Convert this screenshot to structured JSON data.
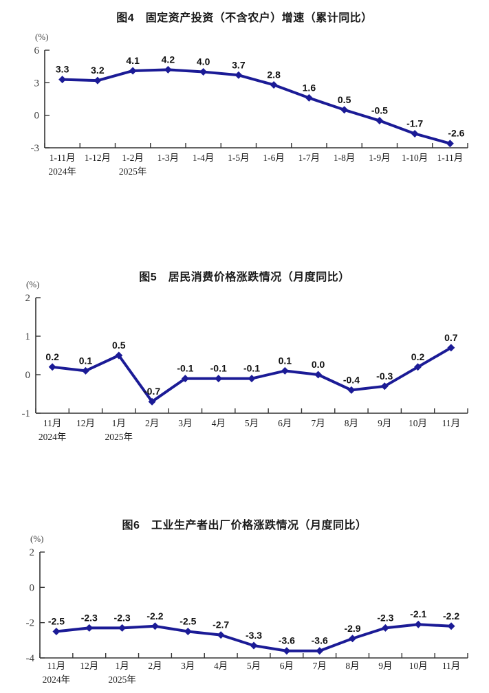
{
  "page": {
    "background": "#ffffff",
    "accent_color": "#1b1b96"
  },
  "chart_data": [
    {
      "type": "line",
      "fig_no": "图4",
      "title": "图4　固定资产投资（不含农户）增速（累计同比）",
      "unit_label": "(%)",
      "categories": [
        "1-11月",
        "1-12月",
        "1-2月",
        "1-3月",
        "1-4月",
        "1-5月",
        "1-6月",
        "1-7月",
        "1-8月",
        "1-9月",
        "1-10月",
        "1-11月"
      ],
      "year_labels": [
        {
          "index": 0,
          "label": "2024年"
        },
        {
          "index": 2,
          "label": "2025年"
        }
      ],
      "values": [
        3.3,
        3.2,
        4.1,
        4.2,
        4.0,
        3.7,
        2.8,
        1.6,
        0.5,
        -0.5,
        -1.7,
        -2.6
      ],
      "point_labels": [
        "3.3",
        "3.2",
        "4.1",
        "4.2",
        "4.0",
        "3.7",
        "2.8",
        "1.6",
        "0.5",
        "-0.5",
        "-1.7",
        "-2.6"
      ],
      "ylim": [
        -3,
        6
      ],
      "yticks": [
        6,
        3,
        0,
        -3
      ],
      "xlabel": "",
      "ylabel": "(%)",
      "grid": false,
      "legend": "none",
      "line_color": "#1b1b96",
      "marker": "diamond",
      "label_color": "#111111"
    },
    {
      "type": "line",
      "fig_no": "图5",
      "title": "图5　居民消费价格涨跌情况（月度同比）",
      "unit_label": "(%)",
      "categories": [
        "11月",
        "12月",
        "1月",
        "2月",
        "3月",
        "4月",
        "5月",
        "6月",
        "7月",
        "8月",
        "9月",
        "10月",
        "11月"
      ],
      "year_labels": [
        {
          "index": 0,
          "label": "2024年"
        },
        {
          "index": 2,
          "label": "2025年"
        }
      ],
      "values": [
        0.2,
        0.1,
        0.5,
        -0.7,
        -0.1,
        -0.1,
        -0.1,
        0.1,
        0.0,
        -0.4,
        -0.3,
        0.2,
        0.7
      ],
      "point_labels": [
        "0.2",
        "0.1",
        "0.5",
        "-0.7",
        "-0.1",
        "-0.1",
        "-0.1",
        "0.1",
        "0.0",
        "-0.4",
        "-0.3",
        "0.2",
        "0.7"
      ],
      "ylim": [
        -1,
        2
      ],
      "yticks": [
        2,
        1,
        0,
        -1
      ],
      "xlabel": "",
      "ylabel": "(%)",
      "grid": false,
      "legend": "none",
      "line_color": "#1b1b96",
      "marker": "diamond",
      "label_color": "#111111"
    },
    {
      "type": "line",
      "fig_no": "图6",
      "title": "图6　工业生产者出厂价格涨跌情况（月度同比）",
      "unit_label": "(%)",
      "categories": [
        "11月",
        "12月",
        "1月",
        "2月",
        "3月",
        "4月",
        "5月",
        "6月",
        "7月",
        "8月",
        "9月",
        "10月",
        "11月"
      ],
      "year_labels": [
        {
          "index": 0,
          "label": "2024年"
        },
        {
          "index": 2,
          "label": "2025年"
        }
      ],
      "values": [
        -2.5,
        -2.3,
        -2.3,
        -2.2,
        -2.5,
        -2.7,
        -3.3,
        -3.6,
        -3.6,
        -2.9,
        -2.3,
        -2.1,
        -2.2
      ],
      "point_labels": [
        "-2.5",
        "-2.3",
        "-2.3",
        "-2.2",
        "-2.5",
        "-2.7",
        "-3.3",
        "-3.6",
        "-3.6",
        "-2.9",
        "-2.3",
        "-2.1",
        "-2.2"
      ],
      "ylim": [
        -4,
        2
      ],
      "yticks": [
        2,
        0,
        -2,
        -4
      ],
      "xlabel": "",
      "ylabel": "(%)",
      "grid": false,
      "legend": "none",
      "line_color": "#1b1b96",
      "marker": "diamond",
      "label_color": "#111111"
    }
  ]
}
